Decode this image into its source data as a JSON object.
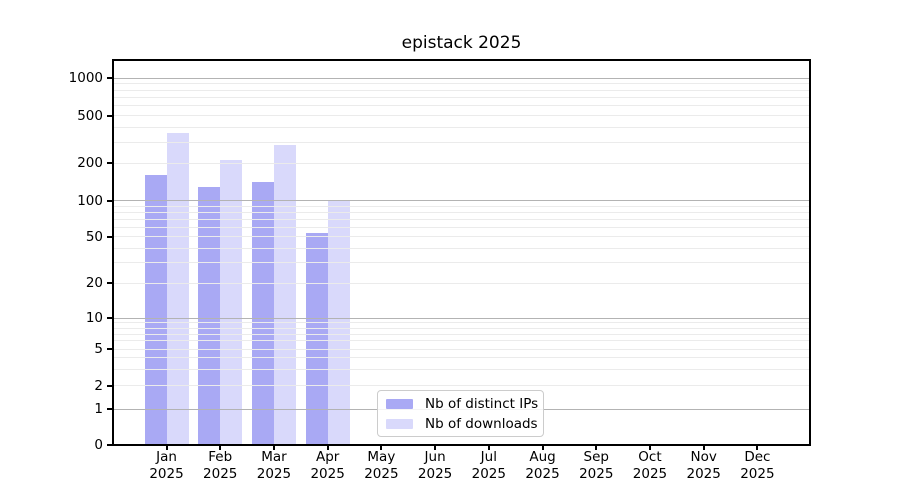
{
  "title": "epistack 2025",
  "chart_data": {
    "type": "bar",
    "title": "epistack 2025",
    "categories": [
      "Jan",
      "Feb",
      "Mar",
      "Apr",
      "May",
      "Jun",
      "Jul",
      "Aug",
      "Sep",
      "Oct",
      "Nov",
      "Dec"
    ],
    "x_year_label": "2025",
    "series": [
      {
        "name": "Nb of distinct IPs",
        "color": "#a9a9f4",
        "values": [
          160,
          130,
          142,
          54,
          null,
          null,
          null,
          null,
          null,
          null,
          null,
          null
        ]
      },
      {
        "name": "Nb of downloads",
        "color": "#d9d9fb",
        "values": [
          360,
          215,
          285,
          100,
          null,
          null,
          null,
          null,
          null,
          null,
          null,
          null
        ]
      }
    ],
    "yscale": "symlog",
    "ytick_values": [
      0,
      1,
      2,
      5,
      10,
      20,
      50,
      100,
      200,
      500,
      1000
    ],
    "ytick_labels": [
      "0",
      "1",
      "2",
      "5",
      "10",
      "20",
      "50",
      "100",
      "200",
      "500",
      "1000"
    ],
    "ylim": [
      0,
      1400
    ],
    "grid": true,
    "legend_position": "lower center",
    "colors": {
      "bar_dark": "#a9a9f4",
      "bar_light": "#d9d9fb",
      "grid_major": "#b3b3b3",
      "grid_minor": "#ebebeb"
    }
  }
}
